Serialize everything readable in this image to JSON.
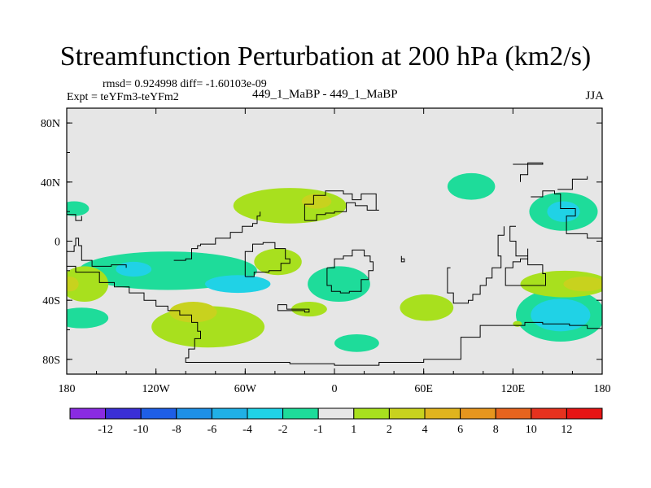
{
  "chart_data": {
    "type": "heatmap",
    "title": "Streamfunction Perturbation at 200 hPa (km2/s)",
    "left_note_1": "rmsd= 0.924998 diff= -1.60103e-09",
    "left_note_2": "Expt = teYFm3-teYFm2",
    "center_note": "449_1_MaBP - 449_1_MaBP",
    "right_note": "JJA",
    "xaxis": {
      "range": [
        -180,
        180
      ],
      "ticks": [
        {
          "value": -180,
          "label": "180"
        },
        {
          "value": -120,
          "label": "120W"
        },
        {
          "value": -60,
          "label": "60W"
        },
        {
          "value": 0,
          "label": "0"
        },
        {
          "value": 60,
          "label": "60E"
        },
        {
          "value": 120,
          "label": "120E"
        },
        {
          "value": 180,
          "label": "180"
        }
      ]
    },
    "yaxis": {
      "range": [
        -90,
        90
      ],
      "ticks": [
        {
          "value": 80,
          "label": "80N"
        },
        {
          "value": 40,
          "label": "40N"
        },
        {
          "value": 0,
          "label": "0"
        },
        {
          "value": -40,
          "label": "40S"
        },
        {
          "value": -80,
          "label": "80S"
        }
      ]
    },
    "colorbar": {
      "colors": [
        "#8a2be2",
        "#3a2fd6",
        "#1e5ee6",
        "#1e90e6",
        "#20b0e6",
        "#20d2e6",
        "#1edc9a",
        "#e6e6e6",
        "#a8e01e",
        "#c8d21e",
        "#e0b41e",
        "#e6961e",
        "#e6641e",
        "#e6321e",
        "#e61414"
      ],
      "labels": [
        "-12",
        "-10",
        "-8",
        "-6",
        "-4",
        "-2",
        "-1",
        "1",
        "2",
        "4",
        "6",
        "8",
        "10",
        "12"
      ]
    },
    "anomalies": [
      {
        "lon": 92,
        "lat": 37,
        "rx": 16,
        "ry": 9,
        "value": -1.5
      },
      {
        "lon": 154,
        "lat": 20,
        "rx": 23,
        "ry": 13,
        "value": -1.5
      },
      {
        "lon": 154,
        "lat": 20,
        "rx": 11,
        "ry": 7,
        "value": -3
      },
      {
        "lon": 152,
        "lat": -50,
        "rx": 30,
        "ry": 18,
        "value": -1.5
      },
      {
        "lon": 152,
        "lat": -50,
        "rx": 20,
        "ry": 11,
        "value": -3
      },
      {
        "lon": 155,
        "lat": -29,
        "rx": 30,
        "ry": 9,
        "value": 1.5
      },
      {
        "lon": 168,
        "lat": -29,
        "rx": 14,
        "ry": 5,
        "value": 3
      },
      {
        "lon": 62,
        "lat": -45,
        "rx": 18,
        "ry": 9,
        "value": 1.5
      },
      {
        "lon": 123,
        "lat": -56,
        "rx": 3,
        "ry": 2,
        "value": 1.5
      },
      {
        "lon": 15,
        "lat": -69,
        "rx": 15,
        "ry": 6,
        "value": -1.5
      },
      {
        "lon": -17,
        "lat": -46,
        "rx": 12,
        "ry": 5,
        "value": 1.5
      },
      {
        "lon": 3,
        "lat": -29,
        "rx": 21,
        "ry": 12,
        "value": -1.5
      },
      {
        "lon": -38,
        "lat": -14,
        "rx": 16,
        "ry": 9,
        "value": 1.5
      },
      {
        "lon": -85,
        "lat": -58,
        "rx": 38,
        "ry": 14,
        "value": 1.5
      },
      {
        "lon": -95,
        "lat": -48,
        "rx": 16,
        "ry": 7,
        "value": 2.5
      },
      {
        "lon": -112,
        "lat": -20,
        "rx": 60,
        "ry": 13,
        "value": -1.5
      },
      {
        "lon": -135,
        "lat": -19,
        "rx": 12,
        "ry": 5,
        "value": -3
      },
      {
        "lon": -65,
        "lat": -29,
        "rx": 22,
        "ry": 6,
        "value": -3
      },
      {
        "lon": -168,
        "lat": -29,
        "rx": 16,
        "ry": 12,
        "value": 1.5
      },
      {
        "lon": -178,
        "lat": -29,
        "rx": 6,
        "ry": 5,
        "value": 3
      },
      {
        "lon": -170,
        "lat": -52,
        "rx": 18,
        "ry": 7,
        "value": -1.5
      },
      {
        "lon": -175,
        "lat": 22,
        "rx": 10,
        "ry": 5,
        "value": -1.5
      },
      {
        "lon": -30,
        "lat": 24,
        "rx": 38,
        "ry": 12,
        "value": 1.5
      },
      {
        "lon": -12,
        "lat": 27,
        "rx": 10,
        "ry": 5,
        "value": 3
      }
    ],
    "coastlines": [
      [
        [
          -180,
          -17
        ],
        [
          -174,
          -21
        ],
        [
          -158,
          -28
        ],
        [
          -148,
          -31
        ],
        [
          -138,
          -35
        ],
        [
          -128,
          -40
        ],
        [
          -120,
          -44
        ],
        [
          -112,
          -47
        ],
        [
          -104,
          -50
        ],
        [
          -96,
          -55
        ],
        [
          -92,
          -61
        ],
        [
          -90,
          -66
        ],
        [
          -94,
          -73
        ],
        [
          -98,
          -79
        ],
        [
          -100,
          -82
        ],
        [
          -60,
          -82
        ],
        [
          -30,
          -83
        ],
        [
          0,
          -84
        ],
        [
          30,
          -82
        ],
        [
          60,
          -80
        ],
        [
          85,
          -65
        ],
        [
          98,
          -57
        ],
        [
          128,
          -55
        ],
        [
          140,
          -56
        ],
        [
          158,
          -57
        ],
        [
          170,
          -59
        ],
        [
          180,
          -63
        ]
      ],
      [
        [
          -180,
          -7
        ],
        [
          -175,
          -3
        ],
        [
          -174,
          2
        ],
        [
          -172,
          -3
        ],
        [
          -170,
          -13
        ],
        [
          -163,
          -17
        ],
        [
          -150,
          -16
        ],
        [
          -140,
          -18
        ]
      ],
      [
        [
          -108,
          -13
        ],
        [
          -100,
          -12
        ],
        [
          -96,
          -5
        ],
        [
          -92,
          -3
        ],
        [
          -90,
          -2
        ],
        [
          -80,
          2
        ],
        [
          -70,
          6
        ],
        [
          -62,
          10
        ],
        [
          -55,
          12
        ],
        [
          -52,
          17
        ],
        [
          -50,
          20
        ]
      ],
      [
        [
          -60,
          -24
        ],
        [
          -54,
          -21
        ],
        [
          -44,
          -20
        ],
        [
          -36,
          -15
        ],
        [
          -30,
          -12
        ],
        [
          -33,
          -5
        ],
        [
          -40,
          -1
        ],
        [
          -48,
          -2
        ],
        [
          -55,
          -7
        ],
        [
          -60,
          -15
        ],
        [
          -60,
          -24
        ]
      ],
      [
        [
          -20,
          14
        ],
        [
          -12,
          18
        ],
        [
          -6,
          19
        ],
        [
          0,
          20
        ],
        [
          8,
          26
        ],
        [
          14,
          24
        ],
        [
          22,
          21
        ],
        [
          30,
          21
        ],
        [
          28,
          32
        ],
        [
          18,
          28
        ],
        [
          12,
          32
        ],
        [
          6,
          34
        ],
        [
          -6,
          31
        ],
        [
          -14,
          25
        ],
        [
          -20,
          14
        ]
      ],
      [
        [
          -5,
          -18
        ],
        [
          0,
          -12
        ],
        [
          6,
          -10
        ],
        [
          12,
          -6
        ],
        [
          20,
          -10
        ],
        [
          24,
          -14
        ],
        [
          26,
          -20
        ],
        [
          23,
          -26
        ],
        [
          18,
          -34
        ],
        [
          10,
          -35
        ],
        [
          4,
          -34
        ],
        [
          -2,
          -30
        ],
        [
          -5,
          -24
        ],
        [
          -5,
          -18
        ]
      ],
      [
        [
          -32,
          -43
        ],
        [
          -38,
          -47
        ],
        [
          -20,
          -48
        ],
        [
          -17,
          -46
        ],
        [
          -32,
          -43
        ]
      ],
      [
        [
          78,
          -18
        ],
        [
          76,
          -35
        ],
        [
          80,
          -42
        ],
        [
          90,
          -40
        ],
        [
          93,
          -36
        ],
        [
          98,
          -30
        ],
        [
          102,
          -25
        ],
        [
          106,
          -18
        ],
        [
          112,
          -10
        ],
        [
          110,
          4
        ],
        [
          114,
          10
        ]
      ],
      [
        [
          122,
          10
        ],
        [
          118,
          0
        ],
        [
          122,
          -10
        ],
        [
          130,
          -16
        ],
        [
          140,
          -22
        ],
        [
          142,
          -30
        ],
        [
          130,
          -30
        ],
        [
          120,
          -30
        ],
        [
          115,
          -25
        ],
        [
          115,
          -18
        ],
        [
          120,
          -14
        ],
        [
          125,
          -12
        ],
        [
          130,
          -5
        ]
      ],
      [
        [
          132,
          30
        ],
        [
          140,
          34
        ],
        [
          148,
          32
        ],
        [
          152,
          22
        ],
        [
          162,
          17
        ],
        [
          156,
          5
        ],
        [
          170,
          2
        ],
        [
          180,
          8
        ]
      ],
      [
        [
          120,
          52
        ],
        [
          130,
          53
        ],
        [
          140,
          52
        ],
        [
          130,
          45
        ],
        [
          125,
          40
        ]
      ],
      [
        [
          150,
          35
        ],
        [
          160,
          42
        ],
        [
          170,
          44
        ]
      ],
      [
        [
          -180,
          18
        ],
        [
          -174,
          14
        ],
        [
          -170,
          17
        ]
      ],
      [
        [
          45,
          -12
        ],
        [
          47,
          -14
        ],
        [
          45,
          -10
        ],
        [
          45,
          -12
        ]
      ]
    ]
  }
}
